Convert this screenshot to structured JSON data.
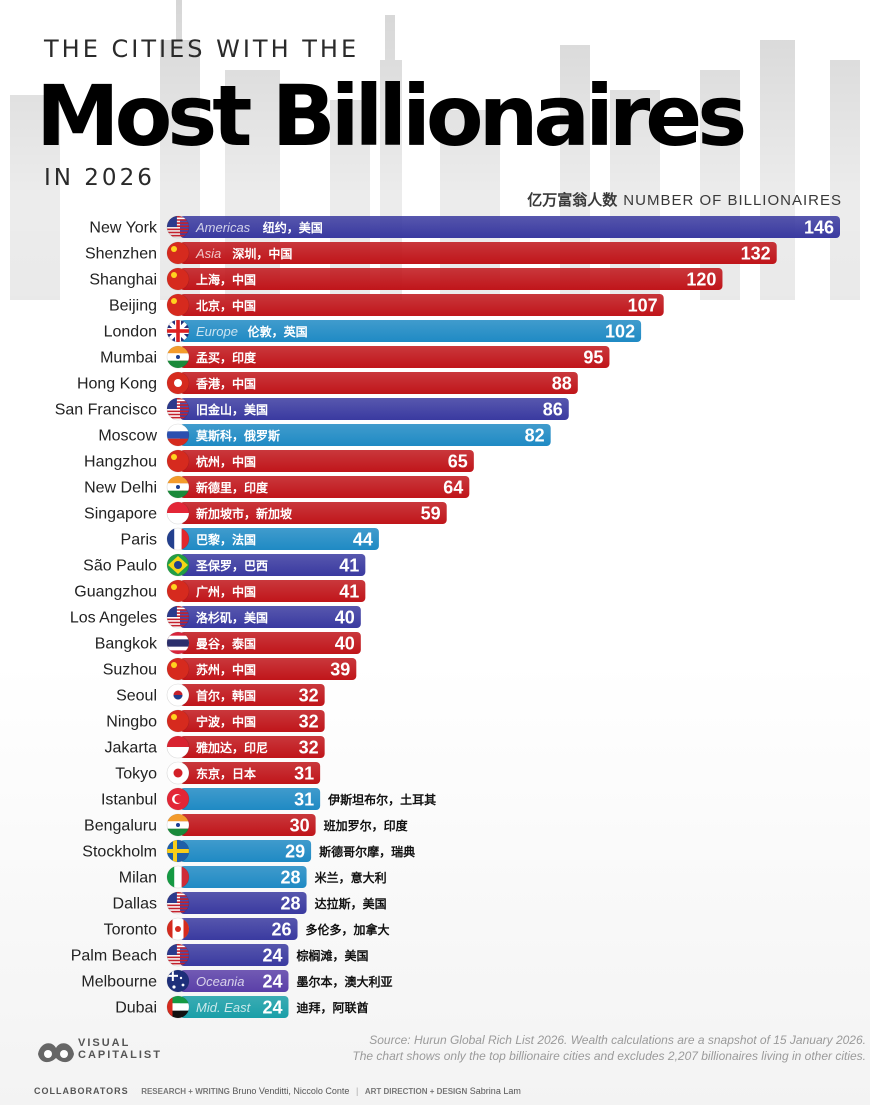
{
  "title": {
    "pre": "THE CITIES WITH THE",
    "main": "Most Billionaires",
    "post": "IN 2026"
  },
  "axis_label_cn": "亿万富翁人数",
  "axis_label_en": "NUMBER OF BILLIONAIRES",
  "colors": {
    "americas": "#3a3aa0",
    "asia": "#c0151a",
    "europe": "#1f8ac4",
    "oceania": "#5a3fa8",
    "mideast": "#1a9fa8"
  },
  "chart_data": {
    "type": "bar",
    "orientation": "horizontal",
    "xlabel": "NUMBER OF BILLIONAIRES",
    "categories": [
      "New York",
      "Shenzhen",
      "Shanghai",
      "Beijing",
      "London",
      "Mumbai",
      "Hong Kong",
      "San Francisco",
      "Moscow",
      "Hangzhou",
      "New Delhi",
      "Singapore",
      "Paris",
      "São Paulo",
      "Guangzhou",
      "Los Angeles",
      "Bangkok",
      "Suzhou",
      "Seoul",
      "Ningbo",
      "Jakarta",
      "Tokyo",
      "Istanbul",
      "Bengaluru",
      "Stockholm",
      "Milan",
      "Dallas",
      "Toronto",
      "Palm Beach",
      "Melbourne",
      "Dubai"
    ],
    "values": [
      146,
      132,
      120,
      107,
      102,
      95,
      88,
      86,
      82,
      65,
      64,
      59,
      44,
      41,
      41,
      40,
      40,
      39,
      32,
      32,
      32,
      31,
      31,
      30,
      29,
      28,
      28,
      26,
      24,
      24,
      24
    ],
    "chinese_labels": [
      "纽约，美国",
      "深圳，中国",
      "上海，中国",
      "北京，中国",
      "伦敦，英国",
      "孟买，印度",
      "香港，中国",
      "旧金山，美国",
      "莫斯科，俄罗斯",
      "杭州，中国",
      "新德里，印度",
      "新加坡市，新加坡",
      "巴黎，法国",
      "圣保罗，巴西",
      "广州，中国",
      "洛杉矶，美国",
      "曼谷，泰国",
      "苏州，中国",
      "首尔，韩国",
      "宁波，中国",
      "雅加达，印尼",
      "东京，日本",
      "伊斯坦布尔，土耳其",
      "班加罗尔，印度",
      "斯德哥尔摩，瑞典",
      "米兰，意大利",
      "达拉斯，美国",
      "多伦多，加拿大",
      "棕榈滩，美国",
      "墨尔本，澳大利亚",
      "迪拜，阿联酋"
    ],
    "regions": [
      "americas",
      "asia",
      "asia",
      "asia",
      "europe",
      "asia",
      "asia",
      "americas",
      "europe",
      "asia",
      "asia",
      "asia",
      "europe",
      "americas",
      "asia",
      "americas",
      "asia",
      "asia",
      "asia",
      "asia",
      "asia",
      "asia",
      "europe",
      "asia",
      "europe",
      "europe",
      "americas",
      "americas",
      "americas",
      "oceania",
      "mideast"
    ],
    "region_labels": [
      "Americas",
      "Asia",
      "",
      "",
      "Europe",
      "",
      "",
      "",
      "",
      "",
      "",
      "",
      "",
      "",
      "",
      "",
      "",
      "",
      "",
      "",
      "",
      "",
      "",
      "",
      "",
      "",
      "",
      "",
      "",
      "Oceania",
      "Mid. East"
    ],
    "flags": [
      "us",
      "cn",
      "cn",
      "cn",
      "uk",
      "in",
      "hk",
      "us",
      "ru",
      "cn",
      "in",
      "sg",
      "fr",
      "br",
      "cn",
      "us",
      "th",
      "cn",
      "kr",
      "cn",
      "id",
      "jp",
      "tr",
      "in",
      "se",
      "it",
      "us",
      "ca",
      "us",
      "au",
      "ae"
    ],
    "xlim": [
      0,
      146
    ]
  },
  "source_line1": "Source: Hurun Global Rich List 2026. Wealth calculations are a snapshot of 15 January 2026.",
  "source_line2": "The chart shows only the top billionaire cities and excludes 2,207 billionaires living in other cities.",
  "logo_line1": "VISUAL",
  "logo_line2": "CAPITALIST",
  "footer": {
    "collaborators": "COLLABORATORS",
    "research_label": "RESEARCH + WRITING",
    "research_names": "Bruno Venditti, Niccolo Conte",
    "separator": "|",
    "design_label": "ART DIRECTION + DESIGN",
    "design_names": "Sabrina Lam"
  }
}
